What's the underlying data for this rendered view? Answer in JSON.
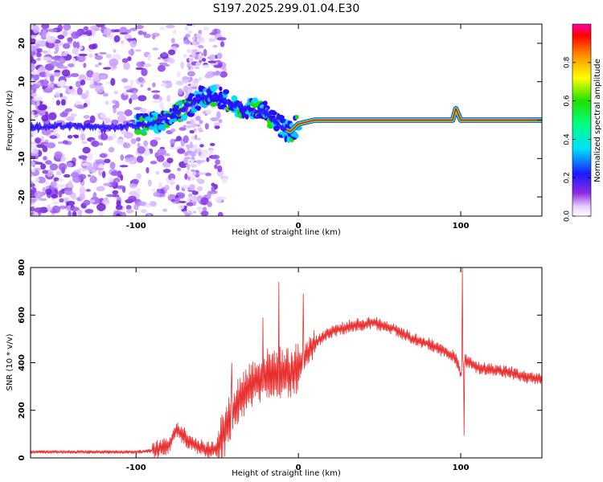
{
  "title": "S197.2025.299.01.04.E30",
  "colors": {
    "snr_line": "#e83030",
    "axis": "#000000",
    "track": "#d61b1b"
  },
  "chart_data": [
    {
      "type": "heatmap",
      "title": "S197.2025.299.01.04.E30",
      "xlabel": "Height of straight line (km)",
      "ylabel": "Frequency (Hz)",
      "xlim": [
        -165,
        150
      ],
      "ylim": [
        -25,
        25
      ],
      "xticks": [
        {
          "value": -100,
          "label": "-100"
        },
        {
          "value": 0,
          "label": "0"
        },
        {
          "value": 100,
          "label": "100"
        }
      ],
      "yticks": [
        {
          "value": 20,
          "label": "20"
        },
        {
          "value": 10,
          "label": "10"
        },
        {
          "value": 0,
          "label": "0"
        },
        {
          "value": -10,
          "label": "-10"
        },
        {
          "value": -20,
          "label": "-20"
        }
      ],
      "track": [
        [
          -165,
          -2
        ],
        [
          -140,
          -1.5
        ],
        [
          -120,
          -2
        ],
        [
          -100,
          -1.5
        ],
        [
          -90,
          -1
        ],
        [
          -80,
          1
        ],
        [
          -70,
          3
        ],
        [
          -60,
          6
        ],
        [
          -50,
          6
        ],
        [
          -40,
          4
        ],
        [
          -30,
          3
        ],
        [
          -20,
          2
        ],
        [
          -10,
          -2
        ],
        [
          -5,
          -3
        ],
        [
          0,
          -1
        ],
        [
          10,
          0
        ],
        [
          20,
          0
        ],
        [
          40,
          0
        ],
        [
          60,
          0
        ],
        [
          80,
          0
        ],
        [
          90,
          0
        ],
        [
          95,
          0
        ],
        [
          97,
          3
        ],
        [
          100,
          0
        ],
        [
          120,
          0
        ],
        [
          150,
          0
        ]
      ],
      "colorbar": {
        "label": "Normalized spectral amplitude",
        "range": [
          0,
          1
        ],
        "ticks": [
          {
            "value": 0.0,
            "label": "0.0"
          },
          {
            "value": 0.2,
            "label": "0.2"
          },
          {
            "value": 0.4,
            "label": "0.4"
          },
          {
            "value": 0.6,
            "label": "0.6"
          },
          {
            "value": 0.8,
            "label": "0.8"
          }
        ]
      }
    },
    {
      "type": "line",
      "xlabel": "Height of straight line (km)",
      "ylabel": "SNR (10 * v/v)",
      "xlim": [
        -165,
        150
      ],
      "ylim": [
        0,
        800
      ],
      "xticks": [
        {
          "value": -100,
          "label": "-100"
        },
        {
          "value": 0,
          "label": "0"
        },
        {
          "value": 100,
          "label": "100"
        }
      ],
      "yticks": [
        {
          "value": 0,
          "label": "0"
        },
        {
          "value": 200,
          "label": "200"
        },
        {
          "value": 400,
          "label": "400"
        },
        {
          "value": 600,
          "label": "600"
        },
        {
          "value": 800,
          "label": "800"
        }
      ],
      "series": [
        {
          "name": "SNR",
          "x": [
            -165,
            -140,
            -120,
            -100,
            -90,
            -80,
            -75,
            -70,
            -65,
            -60,
            -55,
            -50,
            -45,
            -40,
            -35,
            -30,
            -25,
            -20,
            -15,
            -10,
            -5,
            0,
            5,
            10,
            15,
            20,
            25,
            30,
            35,
            40,
            45,
            50,
            55,
            60,
            65,
            70,
            75,
            80,
            85,
            90,
            95,
            98,
            100,
            102,
            105,
            110,
            120,
            130,
            140,
            150
          ],
          "values": [
            25,
            25,
            25,
            25,
            30,
            50,
            120,
            90,
            60,
            40,
            30,
            40,
            120,
            200,
            260,
            300,
            330,
            350,
            360,
            360,
            360,
            380,
            430,
            480,
            510,
            530,
            540,
            550,
            560,
            560,
            570,
            560,
            550,
            540,
            520,
            500,
            490,
            480,
            460,
            450,
            430,
            400,
            350,
            420,
            400,
            380,
            370,
            360,
            340,
            330
          ]
        }
      ],
      "spikes": [
        {
          "x": -41,
          "value": 400
        },
        {
          "x": -22,
          "value": 590
        },
        {
          "x": -12,
          "value": 740
        },
        {
          "x": 3,
          "value": 690
        },
        {
          "x": 101,
          "value": 800
        },
        {
          "x": 102,
          "value": 95
        }
      ]
    }
  ]
}
